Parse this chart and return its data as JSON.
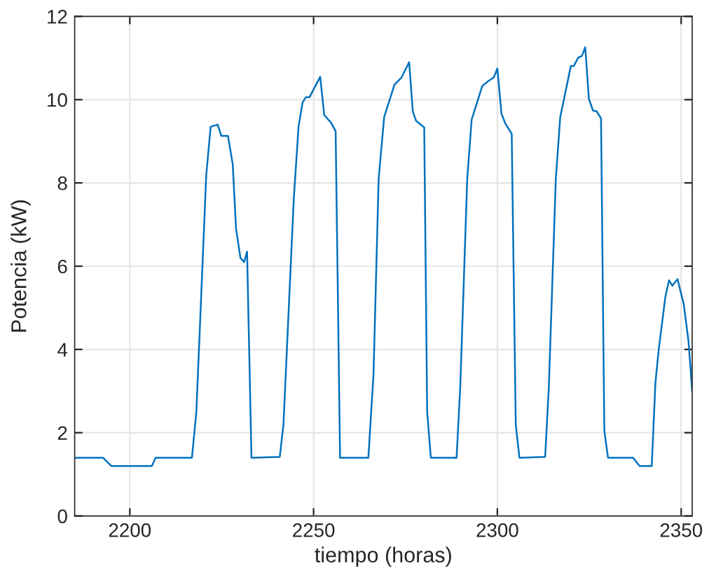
{
  "chart_data": {
    "type": "line",
    "xlabel": "tiempo (horas)",
    "ylabel": "Potencia (kW)",
    "xlim": [
      2185,
      2353
    ],
    "ylim": [
      0,
      12
    ],
    "xticks": [
      2200,
      2250,
      2300,
      2350
    ],
    "yticks": [
      0,
      2,
      4,
      6,
      8,
      10,
      12
    ],
    "grid": true,
    "legend": false,
    "series": [
      {
        "color": "#0072bd",
        "x": [
          2185,
          2192.7,
          2195,
          2206,
          2207,
          2216.9,
          2218.1,
          2220.8,
          2222,
          2223.9,
          2224.9,
          2226.7,
          2228,
          2228.9,
          2230.1,
          2231.1,
          2231.9,
          2233.1,
          2240.8,
          2241.8,
          2244.6,
          2245.9,
          2247,
          2247.9,
          2248.9,
          2251.8,
          2252.9,
          2254.8,
          2256,
          2257.2,
          2264.9,
          2266.3,
          2267.7,
          2269.2,
          2272,
          2273.9,
          2276,
          2277,
          2277.9,
          2280.1,
          2280.9,
          2281.9,
          2288.9,
          2289.9,
          2291.8,
          2293,
          2295.9,
          2297.6,
          2299,
          2300,
          2301.1,
          2302.1,
          2303.9,
          2305,
          2306,
          2313,
          2314,
          2315.9,
          2317.1,
          2320,
          2320.8,
          2322,
          2323,
          2323.9,
          2324.9,
          2326,
          2327,
          2328.2,
          2329.1,
          2330.1,
          2336.9,
          2338.7,
          2342,
          2343,
          2343.9,
          2345.7,
          2346.7,
          2347.6,
          2349,
          2350.7,
          2352,
          2353
        ],
        "values": [
          1.4,
          1.4,
          1.2,
          1.2,
          1.4,
          1.4,
          2.5,
          8.2,
          9.35,
          9.4,
          9.13,
          9.13,
          8.45,
          6.9,
          6.2,
          6.1,
          6.35,
          1.4,
          1.42,
          2.2,
          7.6,
          9.35,
          9.93,
          10.06,
          10.06,
          10.55,
          9.63,
          9.44,
          9.24,
          1.4,
          1.4,
          3.4,
          8.1,
          9.58,
          10.36,
          10.53,
          10.9,
          9.71,
          9.49,
          9.33,
          2.5,
          1.4,
          1.4,
          3.1,
          8.1,
          9.52,
          10.33,
          10.45,
          10.53,
          10.75,
          9.67,
          9.44,
          9.18,
          2.2,
          1.4,
          1.42,
          3.1,
          8.1,
          9.58,
          10.81,
          10.81,
          11.01,
          11.05,
          11.26,
          10.02,
          9.74,
          9.72,
          9.55,
          2.05,
          1.4,
          1.4,
          1.2,
          1.2,
          3.2,
          4.0,
          5.26,
          5.66,
          5.53,
          5.69,
          5.09,
          4.2,
          3.0
        ]
      }
    ]
  }
}
